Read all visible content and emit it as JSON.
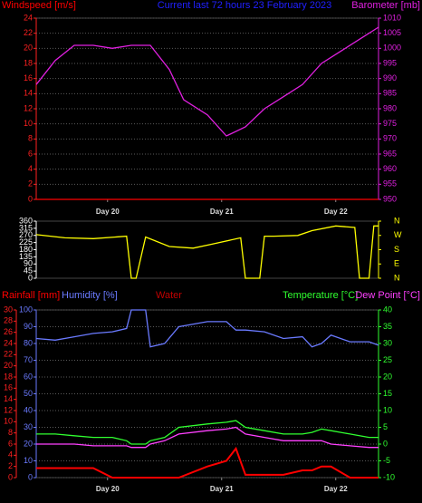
{
  "chart_data": [
    {
      "type": "line",
      "title": "Current last 72 hours 23 February 2023",
      "title_color": "#2020ff",
      "xlim": [
        0,
        72
      ],
      "xticks": [
        {
          "value": 15,
          "label": "Day 20"
        },
        {
          "value": 39,
          "label": "Day 21"
        },
        {
          "value": 63,
          "label": "Day 22"
        }
      ],
      "ylim": [
        0,
        24
      ],
      "yticks": [
        0,
        2,
        4,
        6,
        8,
        10,
        12,
        14,
        16,
        18,
        20,
        22,
        24
      ],
      "ycolor": "#ff2020",
      "y2lim": [
        950,
        1010
      ],
      "y2ticks": [
        950,
        955,
        960,
        965,
        970,
        975,
        980,
        985,
        990,
        995,
        1000,
        1005,
        1010
      ],
      "y2color": "#e020e0",
      "grid": true,
      "x": [
        0,
        4,
        8,
        12,
        16,
        20,
        24,
        28,
        31,
        36,
        40,
        44,
        48,
        52,
        56,
        60,
        64,
        68,
        72
      ],
      "series": [
        {
          "name": "Windspeed [m/s]",
          "color": "#ff0000",
          "values": [
            0,
            0,
            0,
            0,
            0,
            0,
            0,
            0,
            0,
            0,
            0,
            0,
            0,
            0,
            0,
            0,
            0,
            0,
            0
          ]
        },
        {
          "name": "Barometer [mb]",
          "color": "#e020e0",
          "axis": "y2",
          "values": [
            988,
            996,
            1001,
            1001,
            1000,
            1001,
            1001,
            993,
            983,
            978,
            971,
            974,
            980,
            984,
            988,
            995,
            999,
            1003,
            1007
          ]
        }
      ]
    },
    {
      "type": "line",
      "xlim": [
        0,
        72
      ],
      "ylim": [
        0,
        360
      ],
      "yticks": [
        0,
        45,
        90,
        135,
        180,
        225,
        270,
        315,
        360
      ],
      "ycolor": "#ffffff",
      "y2lim": [
        0,
        360
      ],
      "y2ticks": [
        {
          "value": 0,
          "label": "N"
        },
        {
          "value": 90,
          "label": "E"
        },
        {
          "value": 180,
          "label": "S"
        },
        {
          "value": 270,
          "label": "W"
        },
        {
          "value": 360,
          "label": "N"
        }
      ],
      "y2color": "#ffff00",
      "grid": false,
      "x": [
        0,
        6,
        12,
        19,
        20,
        21,
        23,
        28,
        33,
        37,
        43,
        44,
        47,
        48,
        50,
        55,
        58,
        63,
        67,
        68,
        70,
        71,
        72
      ],
      "series": [
        {
          "color": "#ffff00",
          "values": [
            275,
            255,
            250,
            265,
            0,
            0,
            260,
            200,
            190,
            215,
            255,
            0,
            0,
            265,
            265,
            270,
            300,
            330,
            320,
            0,
            0,
            330,
            330
          ]
        }
      ]
    },
    {
      "type": "line",
      "xlim": [
        0,
        72
      ],
      "xticks": [
        {
          "value": 15,
          "label": "Day 20"
        },
        {
          "value": 39,
          "label": "Day 21"
        },
        {
          "value": 63,
          "label": "Day 22"
        }
      ],
      "ylim": [
        0,
        100
      ],
      "yticks": [
        0,
        10,
        20,
        30,
        40,
        50,
        60,
        70,
        80,
        90,
        100
      ],
      "ycolor": "#6a7aff",
      "y3lim": [
        0,
        30
      ],
      "y3ticks": [
        0,
        2,
        4,
        6,
        8,
        10,
        12,
        14,
        16,
        18,
        20,
        22,
        24,
        26,
        28,
        30
      ],
      "y3color": "#ff2020",
      "y2lim": [
        -10,
        40
      ],
      "y2ticks": [
        -10,
        -5,
        0,
        5,
        10,
        15,
        20,
        25,
        30,
        35,
        40
      ],
      "y2color": "#30ff30",
      "grid": true,
      "x": [
        0,
        4,
        8,
        12,
        16,
        19,
        20,
        23,
        24,
        27,
        30,
        36,
        40,
        42,
        44,
        48,
        52,
        56,
        58,
        60,
        62,
        66,
        70,
        72
      ],
      "series": [
        {
          "name": "Rainfall [mm]",
          "color": "#ff0000",
          "axis": "y3",
          "values": [
            1.7,
            1.7,
            1.7,
            1.7,
            0,
            0,
            0,
            0,
            0,
            0,
            0,
            2,
            3,
            5.2,
            0.5,
            0.5,
            0.5,
            1.3,
            1.3,
            2,
            2,
            0,
            0,
            0
          ]
        },
        {
          "name": "Humidity [%]",
          "color": "#6a7aff",
          "values": [
            83,
            82,
            84,
            86,
            87,
            89,
            100,
            100,
            78,
            80,
            90,
            93,
            93,
            88,
            88,
            87,
            83,
            84,
            78,
            80,
            85,
            81,
            81,
            79
          ]
        },
        {
          "name": "Water",
          "color": "#c00000",
          "values": [
            null,
            null,
            null,
            null,
            null,
            null,
            null,
            null,
            null,
            null,
            null,
            null,
            null,
            null,
            null,
            null,
            null,
            null,
            null,
            null,
            null,
            null,
            null,
            null
          ]
        },
        {
          "name": "Temperature [°C]",
          "color": "#30ff30",
          "axis": "y2",
          "values": [
            3,
            3,
            2.5,
            2,
            2,
            1,
            0,
            0,
            1,
            2,
            5,
            6,
            6.5,
            7,
            5,
            4,
            3,
            3,
            3.5,
            4.5,
            4,
            3,
            2,
            2
          ]
        },
        {
          "name": "Dew Point [°C]",
          "color": "#ff40ff",
          "axis": "y2",
          "values": [
            0,
            0,
            0,
            -0.5,
            -0.5,
            -0.5,
            -1,
            -1,
            0,
            1,
            3,
            4,
            4.5,
            5,
            3,
            2,
            1,
            1,
            1,
            1,
            0,
            -0.5,
            -1,
            -1
          ]
        }
      ]
    }
  ]
}
